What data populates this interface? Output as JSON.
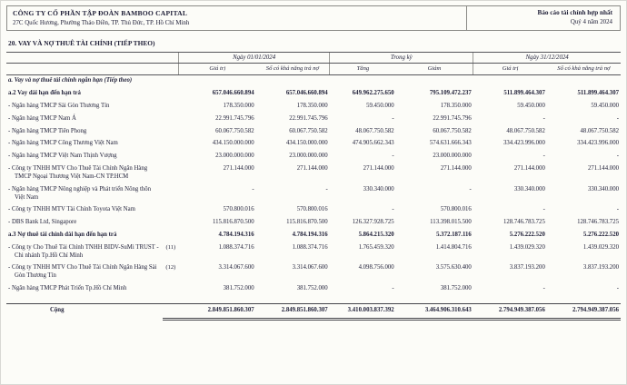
{
  "header": {
    "company": "CÔNG TY CỔ PHẦN TẬP ĐOÀN BAMBOO CAPITAL",
    "address": "27C Quốc Hương, Phường Thảo Điền, TP. Thủ Đức, TP. Hồ Chí Minh",
    "report_title": "Báo cáo tài chính hợp nhất",
    "period": "Quý 4 năm 2024"
  },
  "section": {
    "title": "20. VAY VÀ NỢ THUÊ TÀI CHÍNH (TIẾP THEO)"
  },
  "table": {
    "groups": [
      "Ngày 01/01/2024",
      "Trong kỳ",
      "Ngày 31/12/2024"
    ],
    "headers": [
      "Giá trị",
      "Số có khả năng trả nợ",
      "Tăng",
      "Giảm",
      "Giá trị",
      "Số có khả năng trả nợ"
    ],
    "rows": [
      {
        "style": "section",
        "label": "a. Vay và nợ thuê tài chính ngắn hạn (Tiếp theo)",
        "note": "",
        "values": [
          "",
          "",
          "",
          "",
          "",
          ""
        ]
      },
      {
        "style": "bold",
        "label": "a.2 Vay dài hạn đến hạn trả",
        "note": "",
        "values": [
          "657.046.660.894",
          "657.046.660.894",
          "649.962.275.650",
          "795.109.472.237",
          "511.899.464.307",
          "511.899.464.307"
        ]
      },
      {
        "style": "normal",
        "label": "- Ngân hàng TMCP Sài Gòn Thương Tín",
        "note": "",
        "values": [
          "178.350.000",
          "178.350.000",
          "59.450.000",
          "178.350.000",
          "59.450.000",
          "59.450.000"
        ]
      },
      {
        "style": "normal",
        "label": "- Ngân hàng TMCP Nam Á",
        "note": "",
        "values": [
          "22.991.745.796",
          "22.991.745.796",
          "-",
          "22.991.745.796",
          "-",
          "-"
        ]
      },
      {
        "style": "normal",
        "label": "- Ngân hàng TMCP Tiên Phong",
        "note": "",
        "values": [
          "60.067.750.582",
          "60.067.750.582",
          "48.067.750.582",
          "60.067.750.582",
          "48.067.750.582",
          "48.067.750.582"
        ]
      },
      {
        "style": "normal",
        "label": "- Ngân hàng TMCP Công Thương Việt Nam",
        "note": "",
        "values": [
          "434.150.000.000",
          "434.150.000.000",
          "474.905.662.343",
          "574.631.666.343",
          "334.423.996.000",
          "334.423.996.000"
        ]
      },
      {
        "style": "normal",
        "label": "- Ngân hàng TMCP Việt Nam Thịnh Vượng",
        "note": "",
        "values": [
          "23.000.000.000",
          "23.000.000.000",
          "-",
          "23.000.000.000",
          "-",
          "-"
        ]
      },
      {
        "style": "normal",
        "label": "- Công ty TNHH MTV Cho Thuê Tài Chính Ngân Hàng TMCP Ngoại Thương Việt Nam-CN TP.HCM",
        "note": "",
        "values": [
          "271.144.000",
          "271.144.000",
          "271.144.000",
          "271.144.000",
          "271.144.000",
          "271.144.000"
        ]
      },
      {
        "style": "normal",
        "label": "- Ngân hàng TMCP Nông nghiệp và Phát triển Nông thôn Việt Nam",
        "note": "",
        "values": [
          "-",
          "-",
          "330.340.000",
          "-",
          "330.340.000",
          "330.340.000"
        ]
      },
      {
        "style": "normal",
        "label": "- Công ty TNHH MTV Tài Chính Toyota Việt Nam",
        "note": "",
        "values": [
          "570.800.016",
          "570.800.016",
          "-",
          "570.800.016",
          "-",
          "-"
        ]
      },
      {
        "style": "normal",
        "label": "- DBS Bank Ltd, Singapore",
        "note": "",
        "values": [
          "115.816.870.500",
          "115.816.870.500",
          "126.327.928.725",
          "113.398.015.500",
          "128.746.783.725",
          "128.746.783.725"
        ]
      },
      {
        "style": "bold",
        "label": "a.3 Nợ thuê tài chính dài hạn đến hạn trả",
        "note": "",
        "values": [
          "4.784.194.316",
          "4.784.194.316",
          "5.864.215.320",
          "5.372.187.116",
          "5.276.222.520",
          "5.276.222.520"
        ]
      },
      {
        "style": "normal",
        "label": "- Công ty Cho Thuê Tài Chính TNHH BIDV-SuMi TRUST - Chi nhánh Tp.Hồ Chí Minh",
        "note": "(11)",
        "values": [
          "1.088.374.716",
          "1.088.374.716",
          "1.765.459.320",
          "1.414.804.716",
          "1.439.029.320",
          "1.439.029.320"
        ]
      },
      {
        "style": "normal",
        "label": "- Công ty TNHH MTV Cho Thuê Tài Chính Ngân Hàng Sài Gòn Thương Tín",
        "note": "(12)",
        "values": [
          "3.314.067.600",
          "3.314.067.600",
          "4.098.756.000",
          "3.575.630.400",
          "3.837.193.200",
          "3.837.193.200"
        ]
      },
      {
        "style": "normal",
        "label": "- Ngân hàng TMCP Phát Triển Tp.Hồ Chí Minh",
        "note": "",
        "values": [
          "381.752.000",
          "381.752.000",
          "-",
          "381.752.000",
          "-",
          "-"
        ]
      },
      {
        "style": "total",
        "label": "Cộng",
        "note": "",
        "values": [
          "2.849.851.860.307",
          "2.849.851.860.307",
          "3.410.003.837.392",
          "3.464.906.310.643",
          "2.794.949.387.056",
          "2.794.949.387.056"
        ]
      }
    ]
  }
}
